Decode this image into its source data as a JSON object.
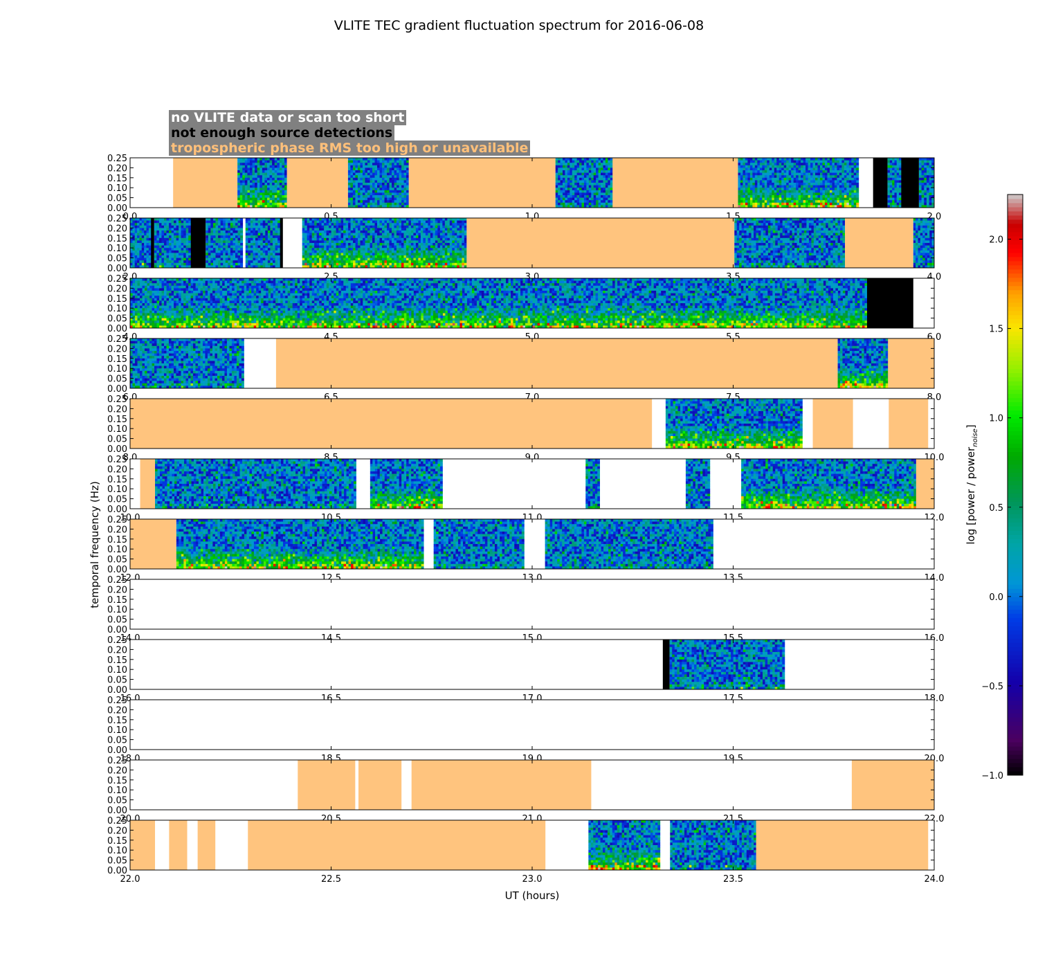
{
  "chart_data": {
    "type": "heatmap",
    "title": "VLITE TEC gradient fluctuation spectrum for 2016-06-08",
    "xlabel": "UT (hours)",
    "ylabel": "temporal frequency (Hz)",
    "colorbar": {
      "label": "log [power / power",
      "label_subscript": "noise",
      "label_end": "]",
      "range": [
        -1.0,
        2.25
      ],
      "ticks": [
        "−1.0",
        "−0.5",
        "0.0",
        "0.5",
        "1.0",
        "1.5",
        "2.0"
      ],
      "tick_values": [
        -1.0,
        -0.5,
        0.0,
        0.5,
        1.0,
        1.5,
        2.0
      ]
    },
    "legend": [
      {
        "label": "no VLITE data or scan too short",
        "text_color": "#ffffff"
      },
      {
        "label": "not enough source detections",
        "text_color": "#000000"
      },
      {
        "label": "tropospheric phase RMS too high or unavailable",
        "text_color": "#ffc07a"
      }
    ],
    "colors": {
      "tropo": "#ffc47e",
      "nodet": "#000000",
      "nodata": "#ffffff"
    },
    "y_ticks": [
      "0.00",
      "0.05",
      "0.10",
      "0.15",
      "0.20",
      "0.25"
    ],
    "ylim": [
      0,
      0.25
    ],
    "panels": [
      {
        "xlim": [
          0,
          2
        ],
        "x_ticks": [
          "0.0",
          "0.5",
          "1.0",
          "1.5",
          "2.0"
        ],
        "segments": [
          [
            "tropo",
            0.107,
            0.267
          ],
          [
            "spec",
            0.267,
            0.39,
            1
          ],
          [
            "tropo",
            0.39,
            0.542
          ],
          [
            "spec",
            0.542,
            0.693,
            0
          ],
          [
            "tropo",
            0.693,
            1.058
          ],
          [
            "spec",
            1.058,
            1.2,
            0
          ],
          [
            "tropo",
            1.2,
            1.512
          ],
          [
            "spec",
            1.512,
            1.812,
            1
          ],
          [
            "nodet",
            1.848,
            1.884
          ],
          [
            "spec",
            1.884,
            1.918,
            0
          ],
          [
            "nodet",
            1.918,
            1.962
          ],
          [
            "spec",
            1.962,
            2.0,
            0
          ]
        ]
      },
      {
        "xlim": [
          2,
          4
        ],
        "x_ticks": [
          "2.0",
          "2.5",
          "3.0",
          "3.5",
          "4.0"
        ],
        "segments": [
          [
            "spec",
            2.0,
            2.052,
            0
          ],
          [
            "nodet",
            2.052,
            2.06
          ],
          [
            "spec",
            2.06,
            2.151,
            0
          ],
          [
            "nodet",
            2.151,
            2.188
          ],
          [
            "spec",
            2.188,
            2.28,
            0
          ],
          [
            "spec",
            2.287,
            2.373,
            0
          ],
          [
            "nodet",
            2.373,
            2.38
          ],
          [
            "spec",
            2.428,
            2.837,
            1
          ],
          [
            "tropo",
            2.837,
            3.503
          ],
          [
            "spec",
            3.503,
            3.778,
            0
          ],
          [
            "tropo",
            3.778,
            3.948
          ],
          [
            "spec",
            3.948,
            4.0,
            0
          ]
        ]
      },
      {
        "xlim": [
          4,
          6
        ],
        "x_ticks": [
          "4.0",
          "4.5",
          "5.0",
          "5.5",
          "6.0"
        ],
        "segments": [
          [
            "spec",
            4.0,
            5.833,
            1
          ],
          [
            "nodet",
            5.833,
            5.948
          ]
        ]
      },
      {
        "xlim": [
          6,
          8
        ],
        "x_ticks": [
          "6.0",
          "6.5",
          "7.0",
          "7.5",
          "8.0"
        ],
        "segments": [
          [
            "spec",
            6.0,
            6.283,
            0
          ],
          [
            "tropo",
            6.363,
            7.76
          ],
          [
            "spec",
            7.76,
            7.885,
            1
          ],
          [
            "tropo",
            7.885,
            8.0
          ]
        ]
      },
      {
        "xlim": [
          8,
          10
        ],
        "x_ticks": [
          "8.0",
          "8.5",
          "9.0",
          "9.5",
          "10.0"
        ],
        "segments": [
          [
            "tropo",
            8.0,
            9.298
          ],
          [
            "spec",
            9.332,
            9.672,
            1
          ],
          [
            "tropo",
            9.698,
            9.798
          ],
          [
            "tropo",
            9.887,
            9.985
          ]
        ]
      },
      {
        "xlim": [
          10,
          12
        ],
        "x_ticks": [
          "10.0",
          "10.5",
          "11.0",
          "11.5",
          "12.0"
        ],
        "segments": [
          [
            "tropo",
            10.025,
            10.062
          ],
          [
            "spec",
            10.062,
            10.562,
            0
          ],
          [
            "spec",
            10.597,
            10.777,
            1
          ],
          [
            "spec",
            11.133,
            11.168,
            0
          ],
          [
            "spec",
            11.382,
            11.442,
            0
          ],
          [
            "spec",
            11.52,
            11.955,
            1
          ],
          [
            "tropo",
            11.955,
            12.0
          ]
        ]
      },
      {
        "xlim": [
          12,
          14
        ],
        "x_ticks": [
          "12.0",
          "12.5",
          "13.0",
          "13.5",
          "14.0"
        ],
        "segments": [
          [
            "tropo",
            12.0,
            12.115
          ],
          [
            "spec",
            12.115,
            12.73,
            1
          ],
          [
            "spec",
            12.755,
            12.98,
            0
          ],
          [
            "spec",
            13.032,
            13.45,
            0
          ]
        ]
      },
      {
        "xlim": [
          14,
          16
        ],
        "x_ticks": [
          "14.0",
          "14.5",
          "15.0",
          "15.5",
          "16.0"
        ],
        "segments": []
      },
      {
        "xlim": [
          16,
          18
        ],
        "x_ticks": [
          "16.0",
          "16.5",
          "17.0",
          "17.5",
          "18.0"
        ],
        "segments": [
          [
            "nodet",
            17.325,
            17.342
          ],
          [
            "spec",
            17.342,
            17.628,
            0
          ]
        ]
      },
      {
        "xlim": [
          18,
          20
        ],
        "x_ticks": [
          "18.0",
          "18.5",
          "19.0",
          "19.5",
          "20.0"
        ],
        "segments": []
      },
      {
        "xlim": [
          20,
          22
        ],
        "x_ticks": [
          "20.0",
          "20.5",
          "21.0",
          "21.5",
          "22.0"
        ],
        "segments": [
          [
            "tropo",
            20.417,
            20.56
          ],
          [
            "tropo",
            20.568,
            20.675
          ],
          [
            "tropo",
            20.7,
            21.147
          ],
          [
            "tropo",
            21.795,
            22.0
          ]
        ]
      },
      {
        "xlim": [
          22,
          24
        ],
        "x_ticks": [
          "22.0",
          "22.5",
          "23.0",
          "23.5",
          "24.0"
        ],
        "segments": [
          [
            "tropo",
            22.0,
            22.062
          ],
          [
            "tropo",
            22.097,
            22.142
          ],
          [
            "tropo",
            22.168,
            22.212
          ],
          [
            "tropo",
            22.293,
            23.033
          ],
          [
            "spec",
            23.14,
            23.318,
            1
          ],
          [
            "spec",
            23.343,
            23.557,
            0
          ],
          [
            "tropo",
            23.557,
            23.985
          ]
        ]
      }
    ]
  }
}
